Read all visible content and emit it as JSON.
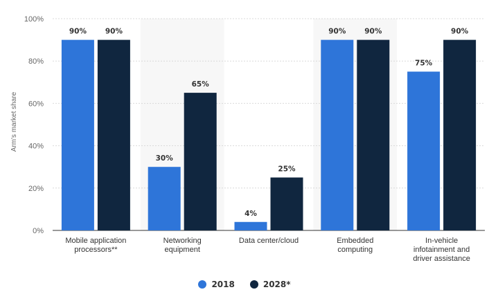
{
  "chart_data": {
    "type": "bar",
    "categories": [
      [
        "Mobile application",
        "processors**"
      ],
      [
        "Networking",
        "equipment"
      ],
      [
        "Data center/cloud"
      ],
      [
        "Embedded",
        "computing"
      ],
      [
        "In-vehicle",
        "infotainment and",
        "driver assistance"
      ]
    ],
    "series": [
      {
        "name": "2018",
        "color": "#2e75d9",
        "values": [
          90,
          30,
          4,
          90,
          75
        ],
        "labels": [
          "90%",
          "30%",
          "4%",
          "90%",
          "75%"
        ]
      },
      {
        "name": "2028*",
        "color": "#10263f",
        "values": [
          90,
          65,
          25,
          90,
          90
        ],
        "labels": [
          "90%",
          "65%",
          "25%",
          "90%",
          "90%"
        ]
      }
    ],
    "ylabel": "Arm's market share",
    "ylim": [
      0,
      100
    ],
    "yticks": [
      0,
      20,
      40,
      60,
      80,
      100
    ],
    "ytick_labels": [
      "0%",
      "20%",
      "40%",
      "60%",
      "80%",
      "100%"
    ],
    "grid": true,
    "shaded_bands": [
      1,
      3
    ],
    "legend_position": "bottom"
  }
}
